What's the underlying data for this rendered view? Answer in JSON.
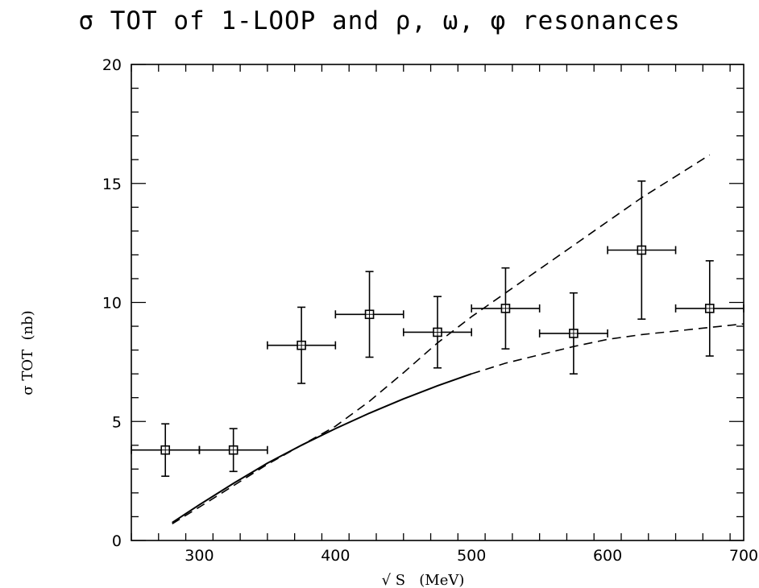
{
  "title": "σ TOT of 1-LOOP and ρ, ω, φ resonances",
  "chart_data": {
    "type": "scatter",
    "title": "σ TOT of 1-LOOP and ρ, ω, φ resonances",
    "xlabel": "√ S   (MeV)",
    "ylabel": "σ TOT  (nb)",
    "xlim": [
      250,
      700
    ],
    "ylim": [
      0,
      20
    ],
    "xticks": [
      300,
      400,
      500,
      600,
      700
    ],
    "yticks": [
      0,
      5,
      10,
      15,
      20
    ],
    "grid": false,
    "series": [
      {
        "style": "points-with-errorbars",
        "marker": "open-square",
        "points": [
          {
            "x": 275,
            "y": 3.8,
            "xerr": 25,
            "yerr_low": 1.1,
            "yerr_high": 1.1
          },
          {
            "x": 325,
            "y": 3.8,
            "xerr": 25,
            "yerr_low": 0.9,
            "yerr_high": 0.9
          },
          {
            "x": 375,
            "y": 8.2,
            "xerr": 25,
            "yerr_low": 1.6,
            "yerr_high": 1.6
          },
          {
            "x": 425,
            "y": 9.5,
            "xerr": 25,
            "yerr_low": 1.8,
            "yerr_high": 1.8
          },
          {
            "x": 475,
            "y": 8.75,
            "xerr": 25,
            "yerr_low": 1.5,
            "yerr_high": 1.5
          },
          {
            "x": 525,
            "y": 9.75,
            "xerr": 25,
            "yerr_low": 1.7,
            "yerr_high": 1.7
          },
          {
            "x": 575,
            "y": 8.7,
            "xerr": 25,
            "yerr_low": 1.7,
            "yerr_high": 1.7
          },
          {
            "x": 625,
            "y": 12.2,
            "xerr": 25,
            "yerr_low": 2.9,
            "yerr_high": 2.9
          },
          {
            "x": 675,
            "y": 9.75,
            "xerr": 25,
            "yerr_low": 2.0,
            "yerr_high": 2.0
          }
        ]
      },
      {
        "style": "solid-line",
        "x": [
          280,
          300,
          325,
          350,
          375,
          400,
          425,
          450,
          475,
          500
        ],
        "y": [
          0.75,
          1.5,
          2.4,
          3.25,
          4.0,
          4.7,
          5.35,
          5.95,
          6.5,
          7.0
        ]
      },
      {
        "style": "dashed-line",
        "x": [
          280,
          300,
          325,
          350,
          375,
          400,
          425,
          450,
          475,
          500,
          525,
          550,
          575,
          600,
          625,
          650,
          675
        ],
        "y": [
          0.7,
          1.4,
          2.3,
          3.2,
          4.0,
          4.8,
          5.85,
          7.05,
          8.3,
          9.4,
          10.4,
          11.4,
          12.4,
          13.4,
          14.4,
          15.3,
          16.2
        ]
      },
      {
        "style": "dashed-line",
        "x": [
          500,
          525,
          550,
          575,
          600,
          625,
          650,
          675,
          700
        ],
        "y": [
          7.0,
          7.45,
          7.8,
          8.15,
          8.45,
          8.65,
          8.8,
          8.95,
          9.1
        ]
      }
    ]
  }
}
